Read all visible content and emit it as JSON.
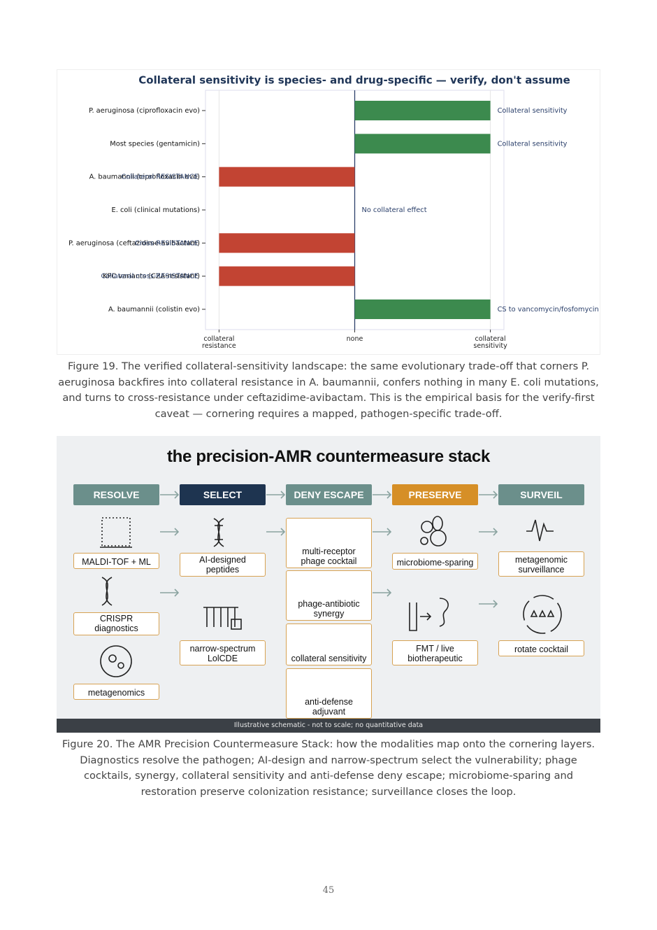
{
  "chart_data": {
    "type": "barh",
    "title": "Collateral sensitivity is species- and drug-specific — verify, don't assume",
    "categories": [
      "P. aeruginosa (ciprofloxacin evo)",
      "Most species (gentamicin)",
      "A. baumannii (ciprofloxacin evo)",
      "E. coli (clinical mutations)",
      "P. aeruginosa (ceftazidime-avibactam)",
      "KPC variants (CZA-resistant)",
      "A. baumannii (colistin evo)"
    ],
    "values": [
      1,
      1,
      -1,
      0,
      -1,
      -1,
      1
    ],
    "annotations": [
      "Collateral sensitivity",
      "Collateral sensitivity",
      "Collateral RESISTANCE",
      "No collateral effect",
      "Cross-RESISTANCE",
      "Collateral cross-RESISTANCE",
      "CS to vancomycin/fosfomycin"
    ],
    "positive_color": "#3c8a4e",
    "negative_color": "#c24433",
    "xlim": [
      -1.1,
      1.1
    ],
    "xticks": [
      {
        "value": -1,
        "label": "collateral resistance"
      },
      {
        "value": 0,
        "label": "none"
      },
      {
        "value": 1,
        "label": "collateral sensitivity"
      }
    ],
    "grid": true
  },
  "figure19_caption": "Figure 19. The verified collateral-sensitivity landscape: the same evolutionary trade-off that corners P. aeruginosa backfires into collateral resistance in A. baumannii, confers nothing in many E. coli mutations, and turns to cross-resistance under ceftazidime-avibactam. This is the empirical basis for the verify-first caveat — cornering requires a mapped, pathogen-specific trade-off.",
  "diagram": {
    "title": "the precision-AMR countermeasure stack",
    "columns": [
      {
        "header": "RESOLVE",
        "items": [
          "MALDI-TOF + ML",
          "CRISPR diagnostics",
          "metagenomics"
        ]
      },
      {
        "header": "SELECT",
        "items": [
          "AI-designed peptides",
          "narrow-spectrum LolCDE"
        ]
      },
      {
        "header": "DENY ESCAPE",
        "items": [
          "multi-receptor phage cocktail",
          "phage-antibiotic synergy",
          "collateral sensitivity",
          "anti-defense adjuvant"
        ]
      },
      {
        "header": "PRESERVE",
        "items": [
          "microbiome-sparing",
          "FMT / live biotherapeutic"
        ]
      },
      {
        "header": "SURVEIL",
        "items": [
          "metagenomic surveillance",
          "rotate cocktail"
        ]
      }
    ],
    "footer": "Illustrative schematic - not to scale; no quantitative data"
  },
  "figure20_caption": "Figure 20. The AMR Precision Countermeasure Stack: how the modalities map onto the cornering layers. Diagnostics resolve the pathogen; AI-design and narrow-spectrum select the vulnerability; phage cocktails, synergy, collateral sensitivity and anti-defense deny escape; microbiome-sparing and restoration preserve colonization resistance; surveillance closes the loop.",
  "page_number": "45"
}
